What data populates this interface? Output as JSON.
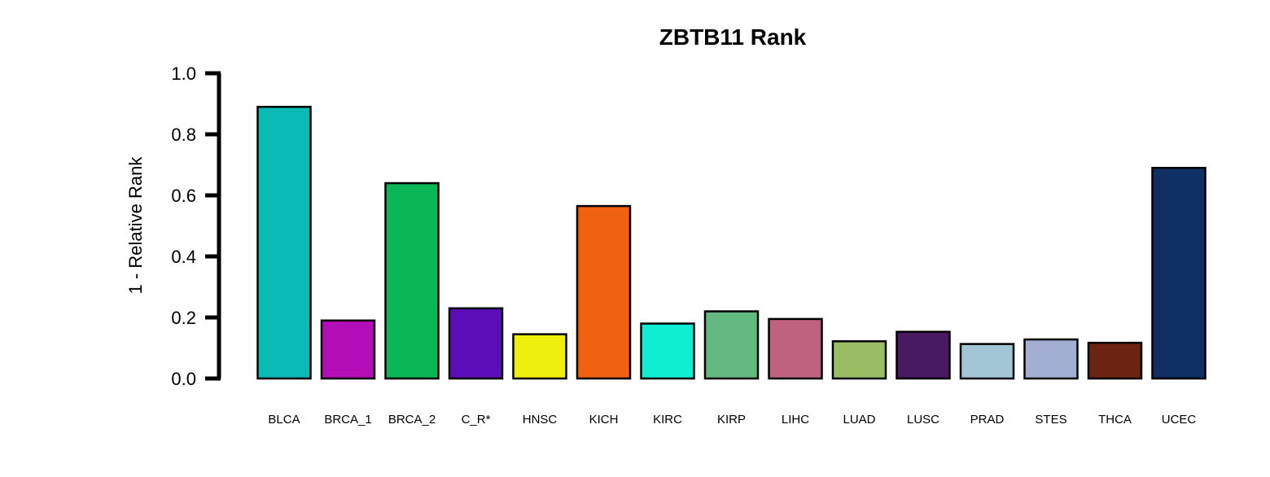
{
  "chart_data": {
    "type": "bar",
    "title": "ZBTB11 Rank",
    "xlabel": "",
    "ylabel": "1 - Relative Rank",
    "ylim": [
      0,
      1
    ],
    "yticks": [
      "0.0",
      "0.2",
      "0.4",
      "0.6",
      "0.8",
      "1.0"
    ],
    "grid": false,
    "categories": [
      "BLCA",
      "BRCA_1",
      "BRCA_2",
      "C_R*",
      "HNSC",
      "KICH",
      "KIRC",
      "KIRP",
      "LIHC",
      "LUAD",
      "LUSC",
      "PRAD",
      "STES",
      "THCA",
      "UCEC"
    ],
    "values": [
      0.89,
      0.19,
      0.64,
      0.23,
      0.145,
      0.565,
      0.18,
      0.22,
      0.195,
      0.122,
      0.153,
      0.113,
      0.128,
      0.117,
      0.69
    ],
    "colors": [
      "#0ABAB5",
      "#B30DB8",
      "#0AB757",
      "#5C0DB8",
      "#EFEF0D",
      "#F06111",
      "#0FEED2",
      "#62BA80",
      "#BE6280",
      "#98BD62",
      "#481A62",
      "#A3C6D6",
      "#A3AED3",
      "#6A2411",
      "#0F2F65"
    ]
  }
}
